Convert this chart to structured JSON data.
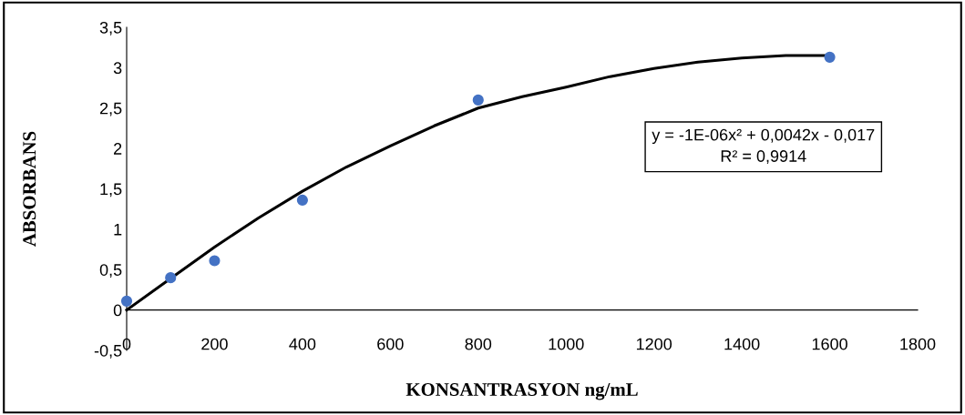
{
  "chart_data": {
    "type": "scatter",
    "xlabel": "KONSANTRASYON ng/mL",
    "ylabel": "ABSORBANS",
    "x": [
      0,
      100,
      200,
      400,
      800,
      1600
    ],
    "series": [
      {
        "color": "#4472c4",
        "marker": "circle",
        "values": [
          0.11,
          0.4,
          0.61,
          1.36,
          2.6,
          3.13
        ]
      },
      {
        "type": "line",
        "color": "#000000",
        "marker": "none",
        "line_style": "solid",
        "x": [
          0,
          100,
          200,
          300,
          400,
          500,
          600,
          700,
          800,
          900,
          1000,
          1100,
          1200,
          1300,
          1400,
          1500,
          1600
        ],
        "values": [
          0.0,
          0.39,
          0.78,
          1.14,
          1.47,
          1.77,
          2.03,
          2.28,
          2.5,
          2.64,
          2.76,
          2.89,
          2.99,
          3.07,
          3.12,
          3.15,
          3.15
        ]
      }
    ],
    "annotations": [
      "y = -1E-06x² + 0,0042x - 0,017\nR² = 0,9914"
    ],
    "xlim": [
      0,
      1800
    ],
    "xticks": [
      0,
      200,
      400,
      600,
      800,
      1000,
      1200,
      1400,
      1600,
      1800
    ],
    "ylim": [
      -0.5,
      3.5
    ],
    "yticks": [
      {
        "value": -0.5,
        "label": "-0,5"
      },
      0,
      {
        "value": 0.5,
        "label": "0,5"
      },
      1,
      {
        "value": 1.5,
        "label": "1,5"
      },
      2,
      {
        "value": 2.5,
        "label": "2,5"
      },
      3,
      {
        "value": 3.5,
        "label": "3,5"
      }
    ],
    "grid": false
  }
}
